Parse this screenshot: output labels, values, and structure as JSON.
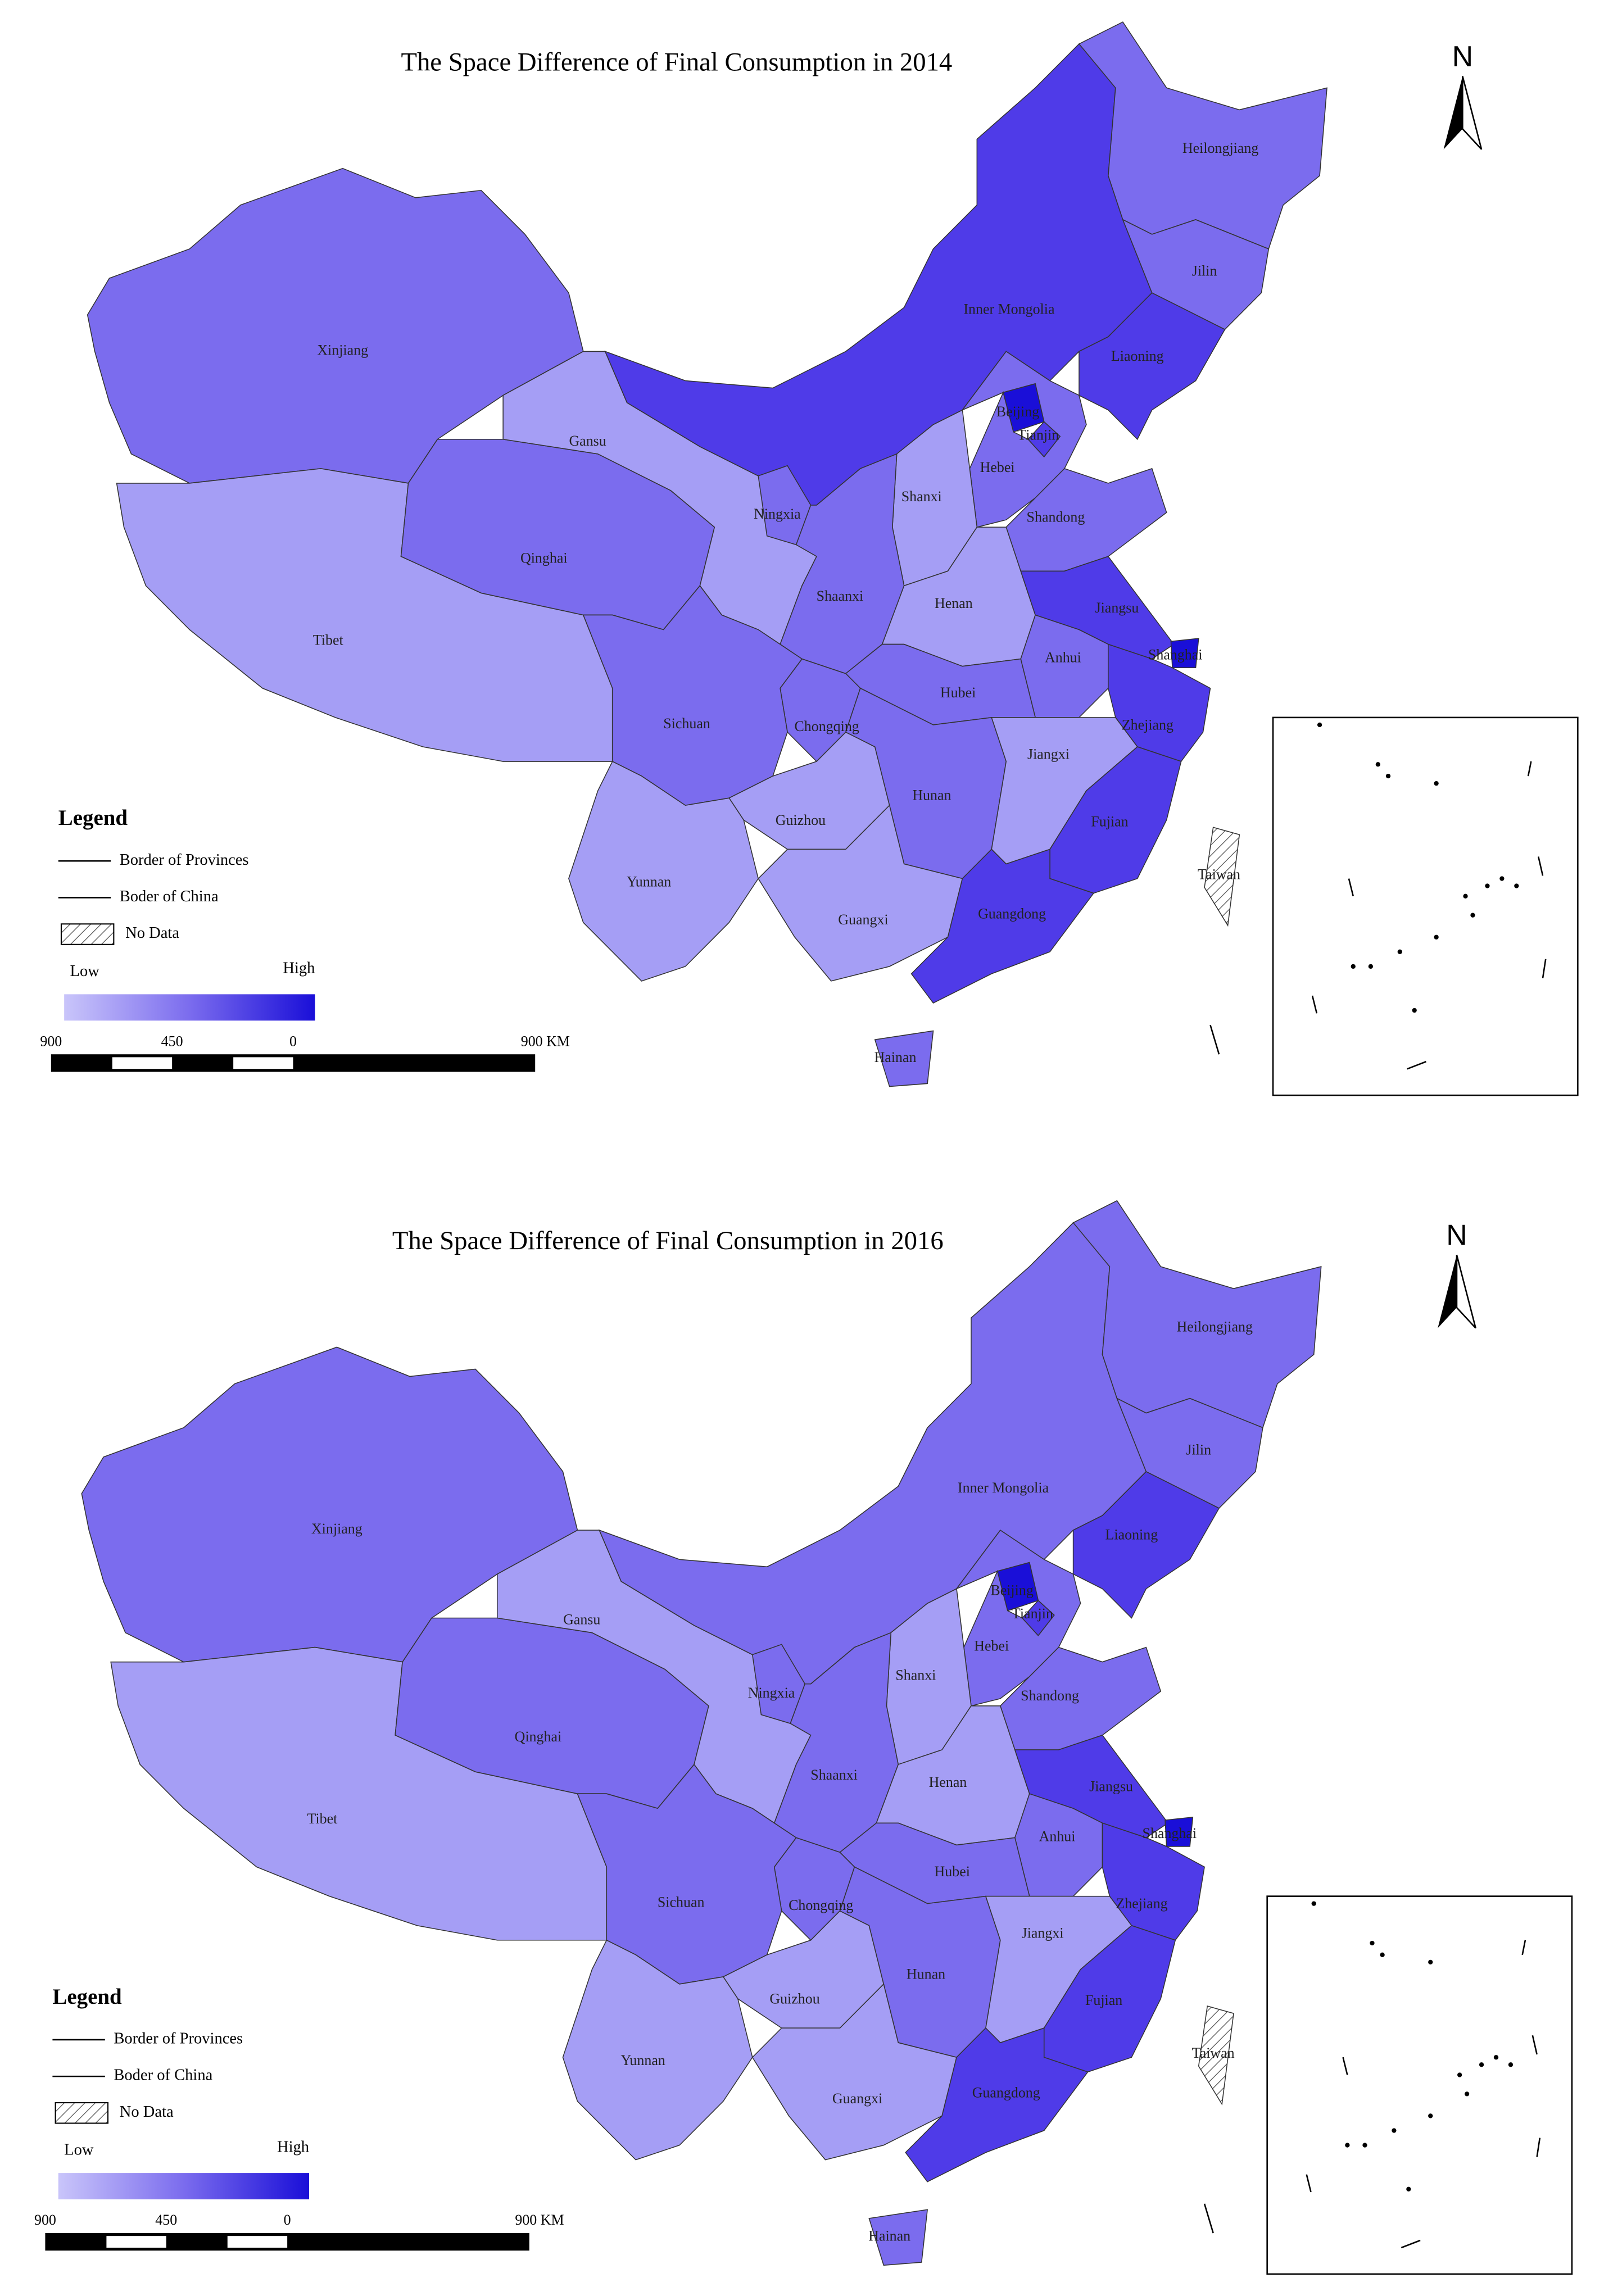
{
  "maps": [
    {
      "title": "The Space Difference of Final Consumption in 2014",
      "no_data_region": "Taiwan",
      "provinces": [
        {
          "label": "Xinjiang",
          "color": "#7b6cee"
        },
        {
          "label": "Tibet",
          "color": "#a59ef5"
        },
        {
          "label": "Qinghai",
          "color": "#7b6cee"
        },
        {
          "label": "Gansu",
          "color": "#a59ef5"
        },
        {
          "label": "Inner Mongolia",
          "color": "#4f3be8"
        },
        {
          "label": "Heilongjiang",
          "color": "#7b6cee"
        },
        {
          "label": "Jilin",
          "color": "#7b6cee"
        },
        {
          "label": "Liaoning",
          "color": "#4f3be8"
        },
        {
          "label": "Beijing",
          "color": "#1a0fd8"
        },
        {
          "label": "Tianjin",
          "color": "#4f3be8"
        },
        {
          "label": "Hebei",
          "color": "#7b6cee"
        },
        {
          "label": "Shanxi",
          "color": "#a59ef5"
        },
        {
          "label": "Shandong",
          "color": "#7b6cee"
        },
        {
          "label": "Ningxia",
          "color": "#7b6cee"
        },
        {
          "label": "Shaanxi",
          "color": "#7b6cee"
        },
        {
          "label": "Henan",
          "color": "#a59ef5"
        },
        {
          "label": "Jiangsu",
          "color": "#4f3be8"
        },
        {
          "label": "Shanghai",
          "color": "#1a0fd8"
        },
        {
          "label": "Anhui",
          "color": "#7b6cee"
        },
        {
          "label": "Zhejiang",
          "color": "#4f3be8"
        },
        {
          "label": "Hubei",
          "color": "#7b6cee"
        },
        {
          "label": "Chongqing",
          "color": "#7b6cee"
        },
        {
          "label": "Sichuan",
          "color": "#7b6cee"
        },
        {
          "label": "Guizhou",
          "color": "#a59ef5"
        },
        {
          "label": "Yunnan",
          "color": "#a59ef5"
        },
        {
          "label": "Hunan",
          "color": "#7b6cee"
        },
        {
          "label": "Jiangxi",
          "color": "#a59ef5"
        },
        {
          "label": "Fujian",
          "color": "#4f3be8"
        },
        {
          "label": "Guangxi",
          "color": "#a59ef5"
        },
        {
          "label": "Guangdong",
          "color": "#4f3be8"
        },
        {
          "label": "Hainan",
          "color": "#7b6cee"
        }
      ]
    },
    {
      "title": "The Space Difference of Final Consumption in 2016",
      "no_data_region": "Taiwan",
      "provinces": [
        {
          "label": "Xinjiang",
          "color": "#7b6cee"
        },
        {
          "label": "Tibet",
          "color": "#a59ef5"
        },
        {
          "label": "Qinghai",
          "color": "#7b6cee"
        },
        {
          "label": "Gansu",
          "color": "#a59ef5"
        },
        {
          "label": "Inner Mongolia",
          "color": "#7b6cee"
        },
        {
          "label": "Heilongjiang",
          "color": "#7b6cee"
        },
        {
          "label": "Jilin",
          "color": "#7b6cee"
        },
        {
          "label": "Liaoning",
          "color": "#4f3be8"
        },
        {
          "label": "Beijing",
          "color": "#1a0fd8"
        },
        {
          "label": "Tianjin",
          "color": "#4f3be8"
        },
        {
          "label": "Hebei",
          "color": "#7b6cee"
        },
        {
          "label": "Shanxi",
          "color": "#a59ef5"
        },
        {
          "label": "Shandong",
          "color": "#7b6cee"
        },
        {
          "label": "Ningxia",
          "color": "#7b6cee"
        },
        {
          "label": "Shaanxi",
          "color": "#7b6cee"
        },
        {
          "label": "Henan",
          "color": "#a59ef5"
        },
        {
          "label": "Jiangsu",
          "color": "#4f3be8"
        },
        {
          "label": "Shanghai",
          "color": "#1a0fd8"
        },
        {
          "label": "Anhui",
          "color": "#7b6cee"
        },
        {
          "label": "Zhejiang",
          "color": "#4f3be8"
        },
        {
          "label": "Hubei",
          "color": "#7b6cee"
        },
        {
          "label": "Chongqing",
          "color": "#7b6cee"
        },
        {
          "label": "Sichuan",
          "color": "#7b6cee"
        },
        {
          "label": "Guizhou",
          "color": "#a59ef5"
        },
        {
          "label": "Yunnan",
          "color": "#a59ef5"
        },
        {
          "label": "Hunan",
          "color": "#7b6cee"
        },
        {
          "label": "Jiangxi",
          "color": "#a59ef5"
        },
        {
          "label": "Fujian",
          "color": "#4f3be8"
        },
        {
          "label": "Guangxi",
          "color": "#a59ef5"
        },
        {
          "label": "Guangdong",
          "color": "#4f3be8"
        },
        {
          "label": "Hainan",
          "color": "#7b6cee"
        }
      ]
    }
  ],
  "legend": {
    "title": "Legend",
    "items": [
      "Border of Provinces",
      "Boder of China",
      "No Data"
    ],
    "low": "Low",
    "high": "High",
    "scale_labels": [
      "900",
      "450",
      "0",
      "900 KM"
    ]
  },
  "north": "N"
}
